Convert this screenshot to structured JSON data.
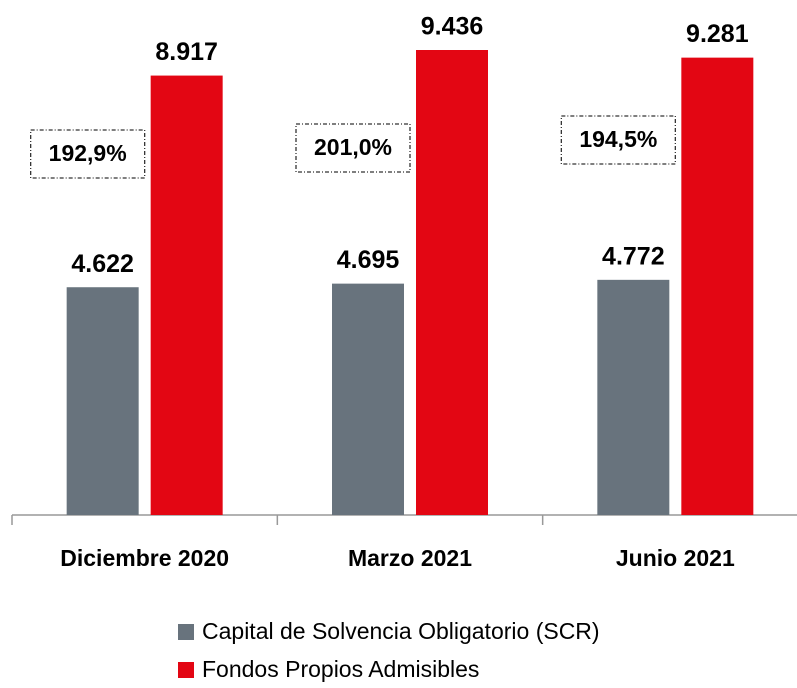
{
  "chart_data": {
    "type": "bar",
    "categories": [
      "Diciembre 2020",
      "Marzo 2021",
      "Junio 2021"
    ],
    "series": [
      {
        "name": "Capital de Solvencia Obligatorio (SCR)",
        "color": "#68737d",
        "values": [
          4622,
          4695,
          4772
        ],
        "value_labels": [
          "4.622",
          "4.695",
          "4.772"
        ]
      },
      {
        "name": "Fondos Propios Admisibles",
        "color": "#e30613",
        "values": [
          8917,
          9436,
          9281
        ],
        "value_labels": [
          "8.917",
          "9.436",
          "9.281"
        ]
      }
    ],
    "annotations": [
      "192,9%",
      "201,0%",
      "194,5%"
    ],
    "legend": "bottom"
  }
}
